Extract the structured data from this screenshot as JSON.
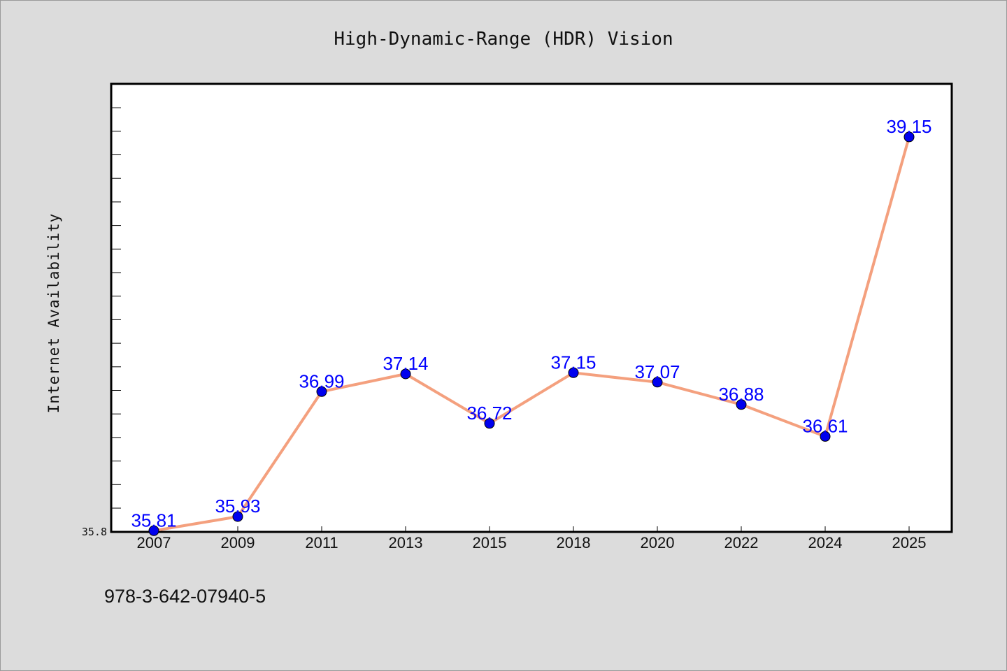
{
  "footer": {
    "isbn": "978-3-642-07940-5"
  },
  "chart_data": {
    "type": "line",
    "title": "High-Dynamic-Range (HDR) Vision",
    "xlabel": "",
    "ylabel": "Internet Availability",
    "categories": [
      "2007",
      "2009",
      "2011",
      "2013",
      "2015",
      "2018",
      "2020",
      "2022",
      "2024",
      "2025"
    ],
    "series": [
      {
        "values": [
          35.81,
          35.93,
          36.99,
          37.14,
          36.72,
          37.15,
          37.07,
          36.88,
          36.61,
          39.15
        ],
        "data_labels": [
          "35.81",
          "35.93",
          "36.99",
          "37.14",
          "36.72",
          "37.15",
          "37.07",
          "36.88",
          "36.61",
          "39.15"
        ]
      }
    ],
    "ylim": [
      35.8,
      39.6
    ],
    "yticks_labeled": [
      "35.8"
    ],
    "grid": false,
    "legend": "none",
    "colors": {
      "line": "#f4a07e",
      "marker": "#0000ee",
      "labels": "#0000ff",
      "background": "#dcdcdc",
      "plot_background": "#ffffff"
    }
  }
}
